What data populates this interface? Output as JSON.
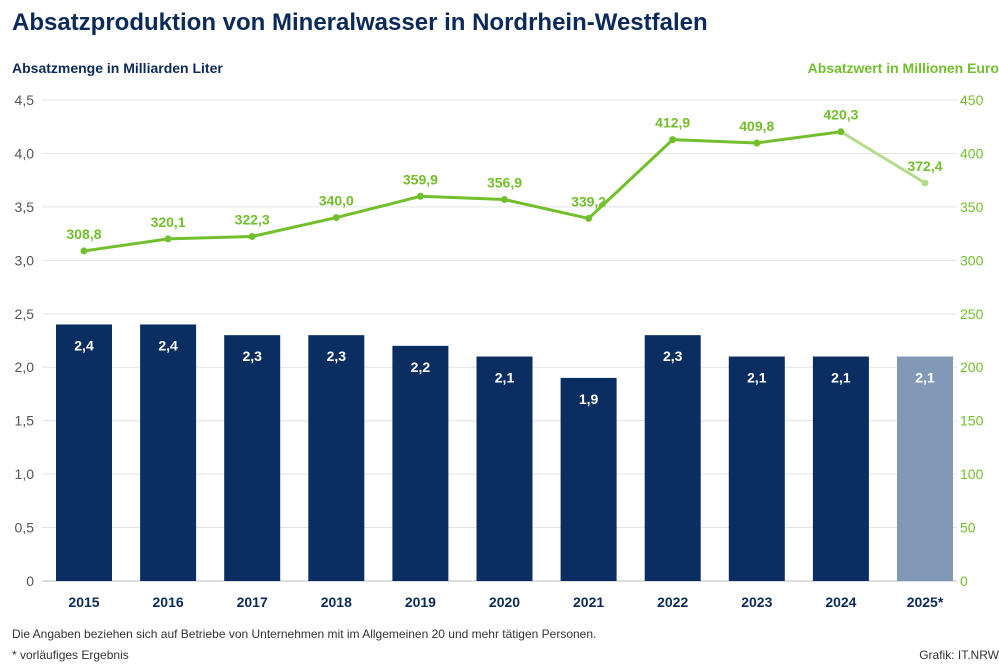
{
  "chart_data": {
    "type": "bar+line",
    "title": "Absatzproduktion von Mineralwasser in Nordrhein-Westfalen",
    "ylabel_left": "Absatzmenge in Milliarden Liter",
    "ylabel_right": "Absatzwert in Millionen Euro",
    "categories": [
      "2015",
      "2016",
      "2017",
      "2018",
      "2019",
      "2020",
      "2021",
      "2022",
      "2023",
      "2024",
      "2025*"
    ],
    "ylim_left": [
      0,
      4.5
    ],
    "ylim_right": [
      0,
      450
    ],
    "yticks_left": [
      "0",
      "0,5",
      "1,0",
      "1,5",
      "2,0",
      "2,5",
      "3,0",
      "3,5",
      "4,0",
      "4,5"
    ],
    "yticks_right": [
      "0",
      "50",
      "100",
      "150",
      "200",
      "250",
      "300",
      "350",
      "400",
      "450"
    ],
    "grid": true,
    "series": [
      {
        "type": "bar",
        "axis": "left",
        "values": [
          2.4,
          2.4,
          2.3,
          2.3,
          2.2,
          2.1,
          1.9,
          2.3,
          2.1,
          2.1,
          2.1
        ],
        "labels": [
          "2,4",
          "2,4",
          "2,3",
          "2,3",
          "2,2",
          "2,1",
          "1,9",
          "2,3",
          "2,1",
          "2,1",
          "2,1"
        ]
      },
      {
        "type": "line",
        "axis": "right",
        "values": [
          308.8,
          320.1,
          322.3,
          340.0,
          359.9,
          356.9,
          339.2,
          412.9,
          409.8,
          420.3,
          372.4
        ],
        "labels": [
          "308,8",
          "320,1",
          "322,3",
          "340,0",
          "359,9",
          "356,9",
          "339,2",
          "412,9",
          "409,8",
          "420,3",
          "372,4"
        ]
      }
    ],
    "colors": {
      "bar": "#0a2e61",
      "bar_provisional": "#8199b6",
      "line": "#72bf2c",
      "line_provisional": "#b3dc8c",
      "title": "#0b2a59"
    }
  },
  "footnotes": {
    "note": "Die Angaben beziehen sich auf Betriebe von Unternehmen mit im Allgemeinen 20 und mehr tätigen Personen.",
    "provisional": "*  vorläufiges Ergebnis",
    "source": "Grafik: IT.NRW"
  }
}
